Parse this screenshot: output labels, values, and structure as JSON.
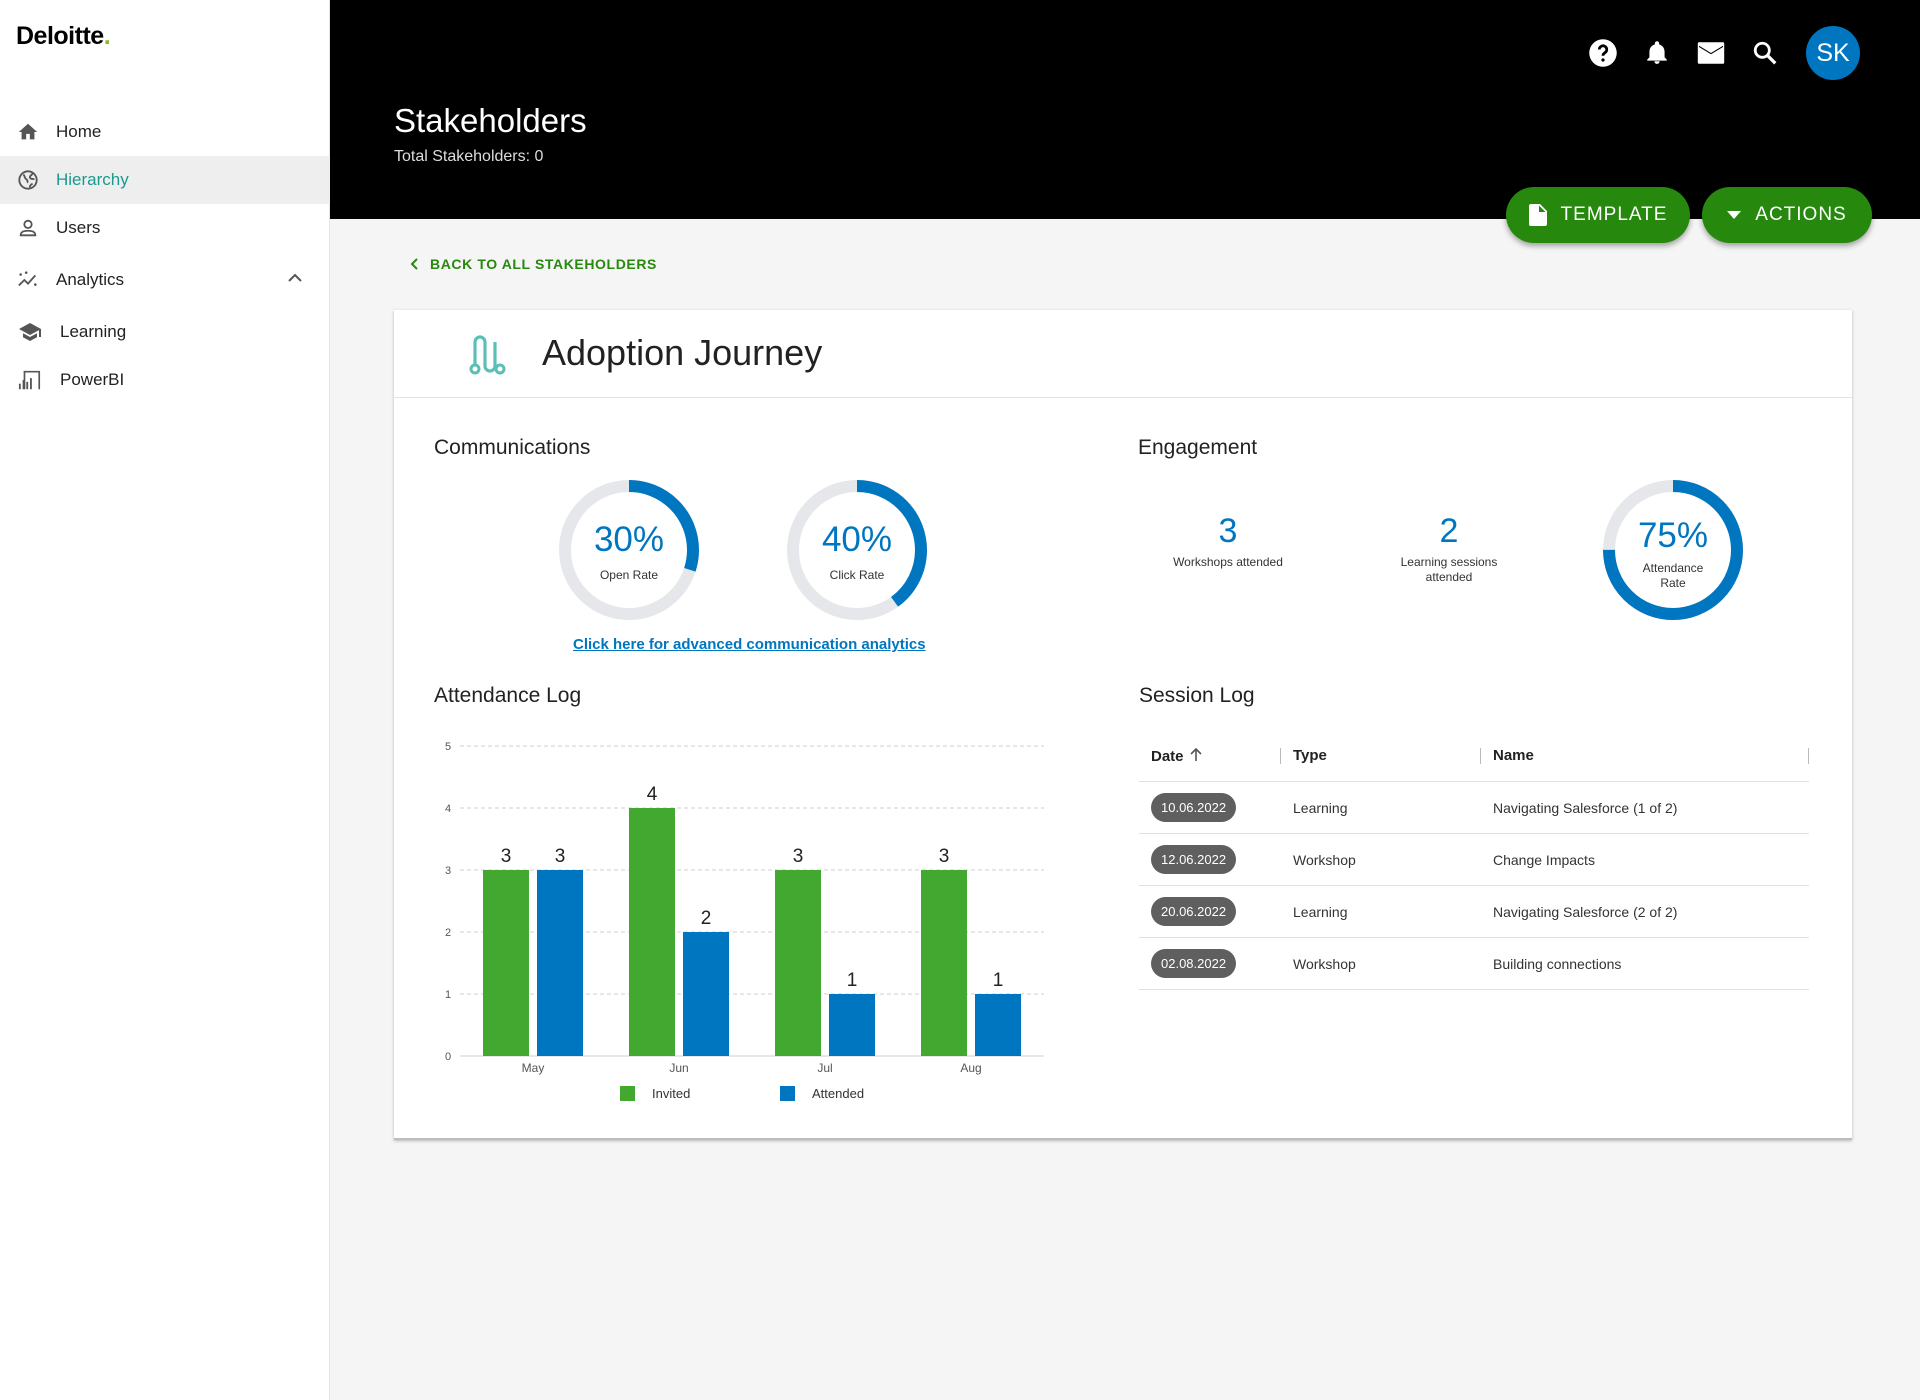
{
  "brand": {
    "name": "Deloitte",
    "dot": "."
  },
  "sidebar": {
    "items": [
      {
        "label": "Home",
        "icon": "home-icon",
        "active": false
      },
      {
        "label": "Hierarchy",
        "icon": "globe-icon",
        "active": true
      },
      {
        "label": "Users",
        "icon": "user-icon",
        "active": false
      },
      {
        "label": "Analytics",
        "icon": "analytics-icon",
        "active": false,
        "expanded": true
      },
      {
        "label": "Learning",
        "icon": "school-icon",
        "active": false
      },
      {
        "label": "PowerBI",
        "icon": "bar-chart-icon",
        "active": false
      }
    ]
  },
  "header": {
    "title": "Stakeholders",
    "subtitle": "Total Stakeholders: 0",
    "avatar_initials": "SK",
    "template_label": "TEMPLATE",
    "actions_label": "ACTIONS"
  },
  "back_link": "BACK TO ALL STAKEHOLDERS",
  "card": {
    "title": "Adoption Journey",
    "communications": {
      "title": "Communications",
      "open_rate": {
        "value": "30%",
        "label": "Open Rate",
        "fraction": 0.3
      },
      "click_rate": {
        "value": "40%",
        "label": "Click Rate",
        "fraction": 0.4
      },
      "link": "Click here for advanced communication analytics"
    },
    "engagement": {
      "title": "Engagement",
      "workshops": {
        "value": "3",
        "label": "Workshops attended"
      },
      "learning": {
        "value": "2",
        "label_line1": "Learning sessions",
        "label_line2": "attended"
      },
      "attendance": {
        "value": "75%",
        "label_line1": "Attendance",
        "label_line2": "Rate",
        "fraction": 0.75
      }
    },
    "attendance_log": {
      "title": "Attendance Log"
    },
    "session_log": {
      "title": "Session Log",
      "columns": [
        "Date",
        "Type",
        "Name"
      ],
      "rows": [
        {
          "date": "10.06.2022",
          "type": "Learning",
          "name": "Navigating Salesforce (1 of 2)"
        },
        {
          "date": "12.06.2022",
          "type": "Workshop",
          "name": "Change Impacts"
        },
        {
          "date": "20.06.2022",
          "type": "Learning",
          "name": "Navigating Salesforce (2 of 2)"
        },
        {
          "date": "02.08.2022",
          "type": "Workshop",
          "name": "Building connections"
        }
      ]
    }
  },
  "colors": {
    "green": "#43a82f",
    "blue": "#0076c0",
    "accent_teal": "#1a9a8f",
    "button_green": "#26890d"
  },
  "chart_data": {
    "type": "bar",
    "title": "Attendance Log",
    "categories": [
      "May",
      "Jun",
      "Jul",
      "Aug"
    ],
    "series": [
      {
        "name": "Invited",
        "values": [
          3,
          4,
          3,
          3
        ],
        "color": "#43a82f"
      },
      {
        "name": "Attended",
        "values": [
          3,
          2,
          1,
          1
        ],
        "color": "#0076c0"
      }
    ],
    "ylim": [
      0,
      5
    ],
    "yticks": [
      0,
      1,
      2,
      3,
      4,
      5
    ],
    "grid": true,
    "legend": "bottom",
    "xlabel": "",
    "ylabel": ""
  }
}
